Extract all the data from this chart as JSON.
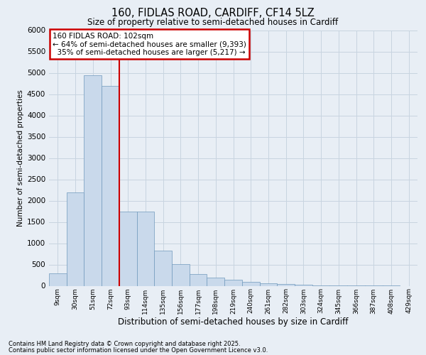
{
  "title_line1": "160, FIDLAS ROAD, CARDIFF, CF14 5LZ",
  "title_line2": "Size of property relative to semi-detached houses in Cardiff",
  "xlabel": "Distribution of semi-detached houses by size in Cardiff",
  "ylabel": "Number of semi-detached properties",
  "footer_line1": "Contains HM Land Registry data © Crown copyright and database right 2025.",
  "footer_line2": "Contains public sector information licensed under the Open Government Licence v3.0.",
  "bin_labels": [
    "9sqm",
    "30sqm",
    "51sqm",
    "72sqm",
    "93sqm",
    "114sqm",
    "135sqm",
    "156sqm",
    "177sqm",
    "198sqm",
    "219sqm",
    "240sqm",
    "261sqm",
    "282sqm",
    "303sqm",
    "324sqm",
    "345sqm",
    "366sqm",
    "387sqm",
    "408sqm",
    "429sqm"
  ],
  "bar_values": [
    300,
    2200,
    4950,
    4700,
    1750,
    1750,
    830,
    510,
    280,
    190,
    140,
    90,
    60,
    40,
    25,
    12,
    6,
    3,
    2,
    1,
    0
  ],
  "bar_color": "#c9d9eb",
  "bar_edge_color": "#7099bc",
  "vline_x": 3.5,
  "vline_color": "#cc0000",
  "annotation_text": "160 FIDLAS ROAD: 102sqm\n← 64% of semi-detached houses are smaller (9,393)\n  35% of semi-detached houses are larger (5,217) →",
  "annotation_box_color": "#cc0000",
  "ylim": [
    0,
    6000
  ],
  "yticks": [
    0,
    500,
    1000,
    1500,
    2000,
    2500,
    3000,
    3500,
    4000,
    4500,
    5000,
    5500,
    6000
  ],
  "bg_color": "#e8eef5",
  "grid_color": "#c8d4e0"
}
